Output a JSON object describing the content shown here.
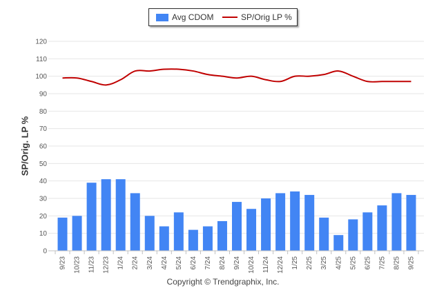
{
  "chart_data": {
    "type": "bar",
    "categories": [
      "9/23",
      "10/23",
      "11/23",
      "12/23",
      "1/24",
      "2/24",
      "3/24",
      "4/24",
      "5/24",
      "6/24",
      "7/24",
      "8/24",
      "9/24",
      "10/24",
      "11/24",
      "12/24",
      "1/25",
      "2/25",
      "3/25",
      "4/25",
      "5/25",
      "6/25",
      "7/25",
      "8/25",
      "9/25"
    ],
    "series": [
      {
        "name": "Avg CDOM",
        "type": "bar",
        "color": "#4285f4",
        "values": [
          19,
          20,
          39,
          41,
          41,
          33,
          20,
          14,
          22,
          12,
          14,
          17,
          28,
          24,
          30,
          33,
          34,
          32,
          19,
          9,
          18,
          22,
          26,
          33,
          32
        ]
      },
      {
        "name": "SP/Orig LP %",
        "type": "line",
        "color": "#c00000",
        "values": [
          99,
          99,
          97,
          95,
          98,
          103,
          103,
          104,
          104,
          103,
          101,
          100,
          99,
          100,
          98,
          97,
          100,
          100,
          101,
          103,
          100,
          97,
          97,
          97,
          97
        ]
      }
    ],
    "ylabel": "SP/Orig. LP %",
    "xlabel": "",
    "ylim": [
      0,
      120
    ],
    "yticks": [
      0,
      10,
      20,
      30,
      40,
      50,
      60,
      70,
      80,
      90,
      100,
      110,
      120
    ],
    "grid": true,
    "legend_position": "top-center"
  },
  "copyright": "Copyright © Trendgraphix, Inc."
}
